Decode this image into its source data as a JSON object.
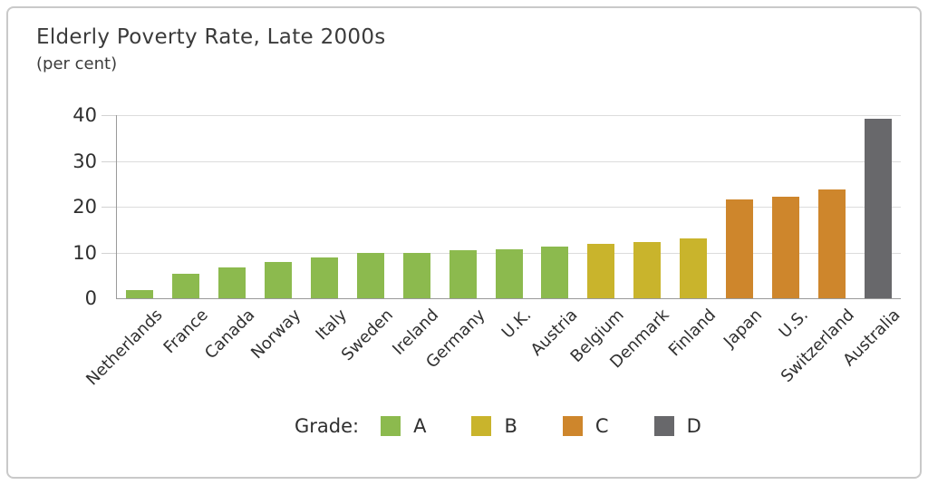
{
  "page": {
    "title": "Elderly Poverty Rate, Late 2000s",
    "subtitle": "(per cent)"
  },
  "legend": {
    "label": "Grade:",
    "items": [
      {
        "grade": "A",
        "color": "#8cba4e"
      },
      {
        "grade": "B",
        "color": "#c9b42c"
      },
      {
        "grade": "C",
        "color": "#ce862c"
      },
      {
        "grade": "D",
        "color": "#68686b"
      }
    ]
  },
  "chart_data": {
    "type": "bar",
    "title": "Elderly Poverty Rate, Late 2000s",
    "subtitle": "(per cent)",
    "ylabel": "per cent",
    "ylim": [
      0,
      40
    ],
    "yticks": [
      0,
      10,
      20,
      30,
      40
    ],
    "grid": true,
    "legend_position": "bottom",
    "categories": [
      "Netherlands",
      "France",
      "Canada",
      "Norway",
      "Italy",
      "Sweden",
      "Ireland",
      "Germany",
      "U.K.",
      "Austria",
      "Belgium",
      "Denmark",
      "Finland",
      "Japan",
      "U.S.",
      "Switzerland",
      "Australia"
    ],
    "values": [
      1.7,
      5.4,
      6.7,
      8.0,
      8.9,
      10.0,
      10.0,
      10.5,
      10.8,
      11.2,
      11.9,
      12.3,
      13.1,
      21.5,
      22.2,
      23.8,
      39.3
    ],
    "grades": [
      "A",
      "A",
      "A",
      "A",
      "A",
      "A",
      "A",
      "A",
      "A",
      "A",
      "B",
      "B",
      "B",
      "C",
      "C",
      "C",
      "D"
    ],
    "grade_colors": {
      "A": "#8cba4e",
      "B": "#c9b42c",
      "C": "#ce862c",
      "D": "#68686b"
    }
  },
  "colors": {
    "frame_border": "#c9c9c9",
    "axis": "#9a9a9a",
    "gridline": "#dcdcdc",
    "text": "#3b3b3b"
  }
}
